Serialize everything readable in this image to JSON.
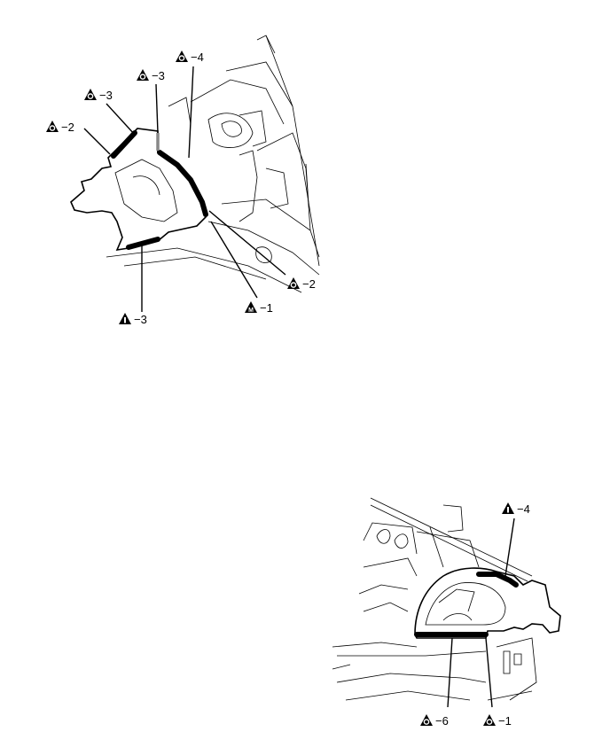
{
  "figure_top": {
    "callouts": [
      {
        "symbol": "O",
        "text": "−4"
      },
      {
        "symbol": "O",
        "text": "−3"
      },
      {
        "symbol": "O",
        "text": "−3"
      },
      {
        "symbol": "O",
        "text": "−2"
      },
      {
        "symbol": "O",
        "text": "−2"
      },
      {
        "symbol": "M",
        "text": "−1"
      },
      {
        "symbol": "I",
        "text": "−3"
      }
    ]
  },
  "figure_bottom": {
    "callouts": [
      {
        "symbol": "I",
        "text": "−4"
      },
      {
        "symbol": "O",
        "text": "−6"
      },
      {
        "symbol": "O",
        "text": "−1"
      }
    ]
  }
}
